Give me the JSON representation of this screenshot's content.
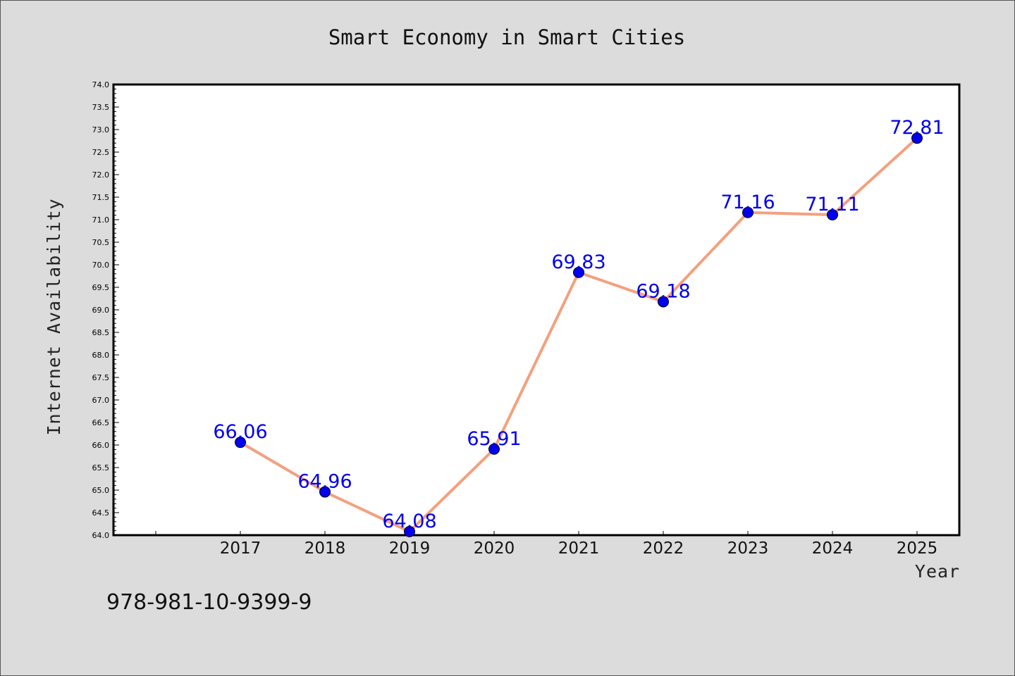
{
  "chart_data": {
    "type": "line",
    "title": "Smart Economy in Smart Cities",
    "xlabel": "Year",
    "ylabel": "Internet Availability",
    "x": [
      "2017",
      "2018",
      "2019",
      "2020",
      "2021",
      "2022",
      "2023",
      "2024",
      "2025"
    ],
    "series": [
      {
        "values": [
          66.06,
          64.96,
          64.08,
          65.91,
          69.83,
          69.18,
          71.16,
          71.11,
          72.81
        ]
      }
    ],
    "data_labels": [
      "66.06",
      "64.96",
      "64.08",
      "65.91",
      "69.83",
      "69.18",
      "71.16",
      "71.11",
      "72.81"
    ],
    "ylim": [
      64.0,
      74.0
    ],
    "yticks": [
      "64.0",
      "64.5",
      "65.0",
      "65.5",
      "66.0",
      "66.5",
      "67.0",
      "67.5",
      "68.0",
      "68.5",
      "69.0",
      "69.5",
      "70.0",
      "70.5",
      "71.0",
      "71.5",
      "72.0",
      "72.5",
      "73.0",
      "73.5",
      "74.0"
    ],
    "grid": false,
    "line_color": "#f4a07e",
    "marker_color": "#0000ee",
    "label_color": "#0000ee"
  },
  "footer": {
    "isbn": "978-981-10-9399-9"
  }
}
